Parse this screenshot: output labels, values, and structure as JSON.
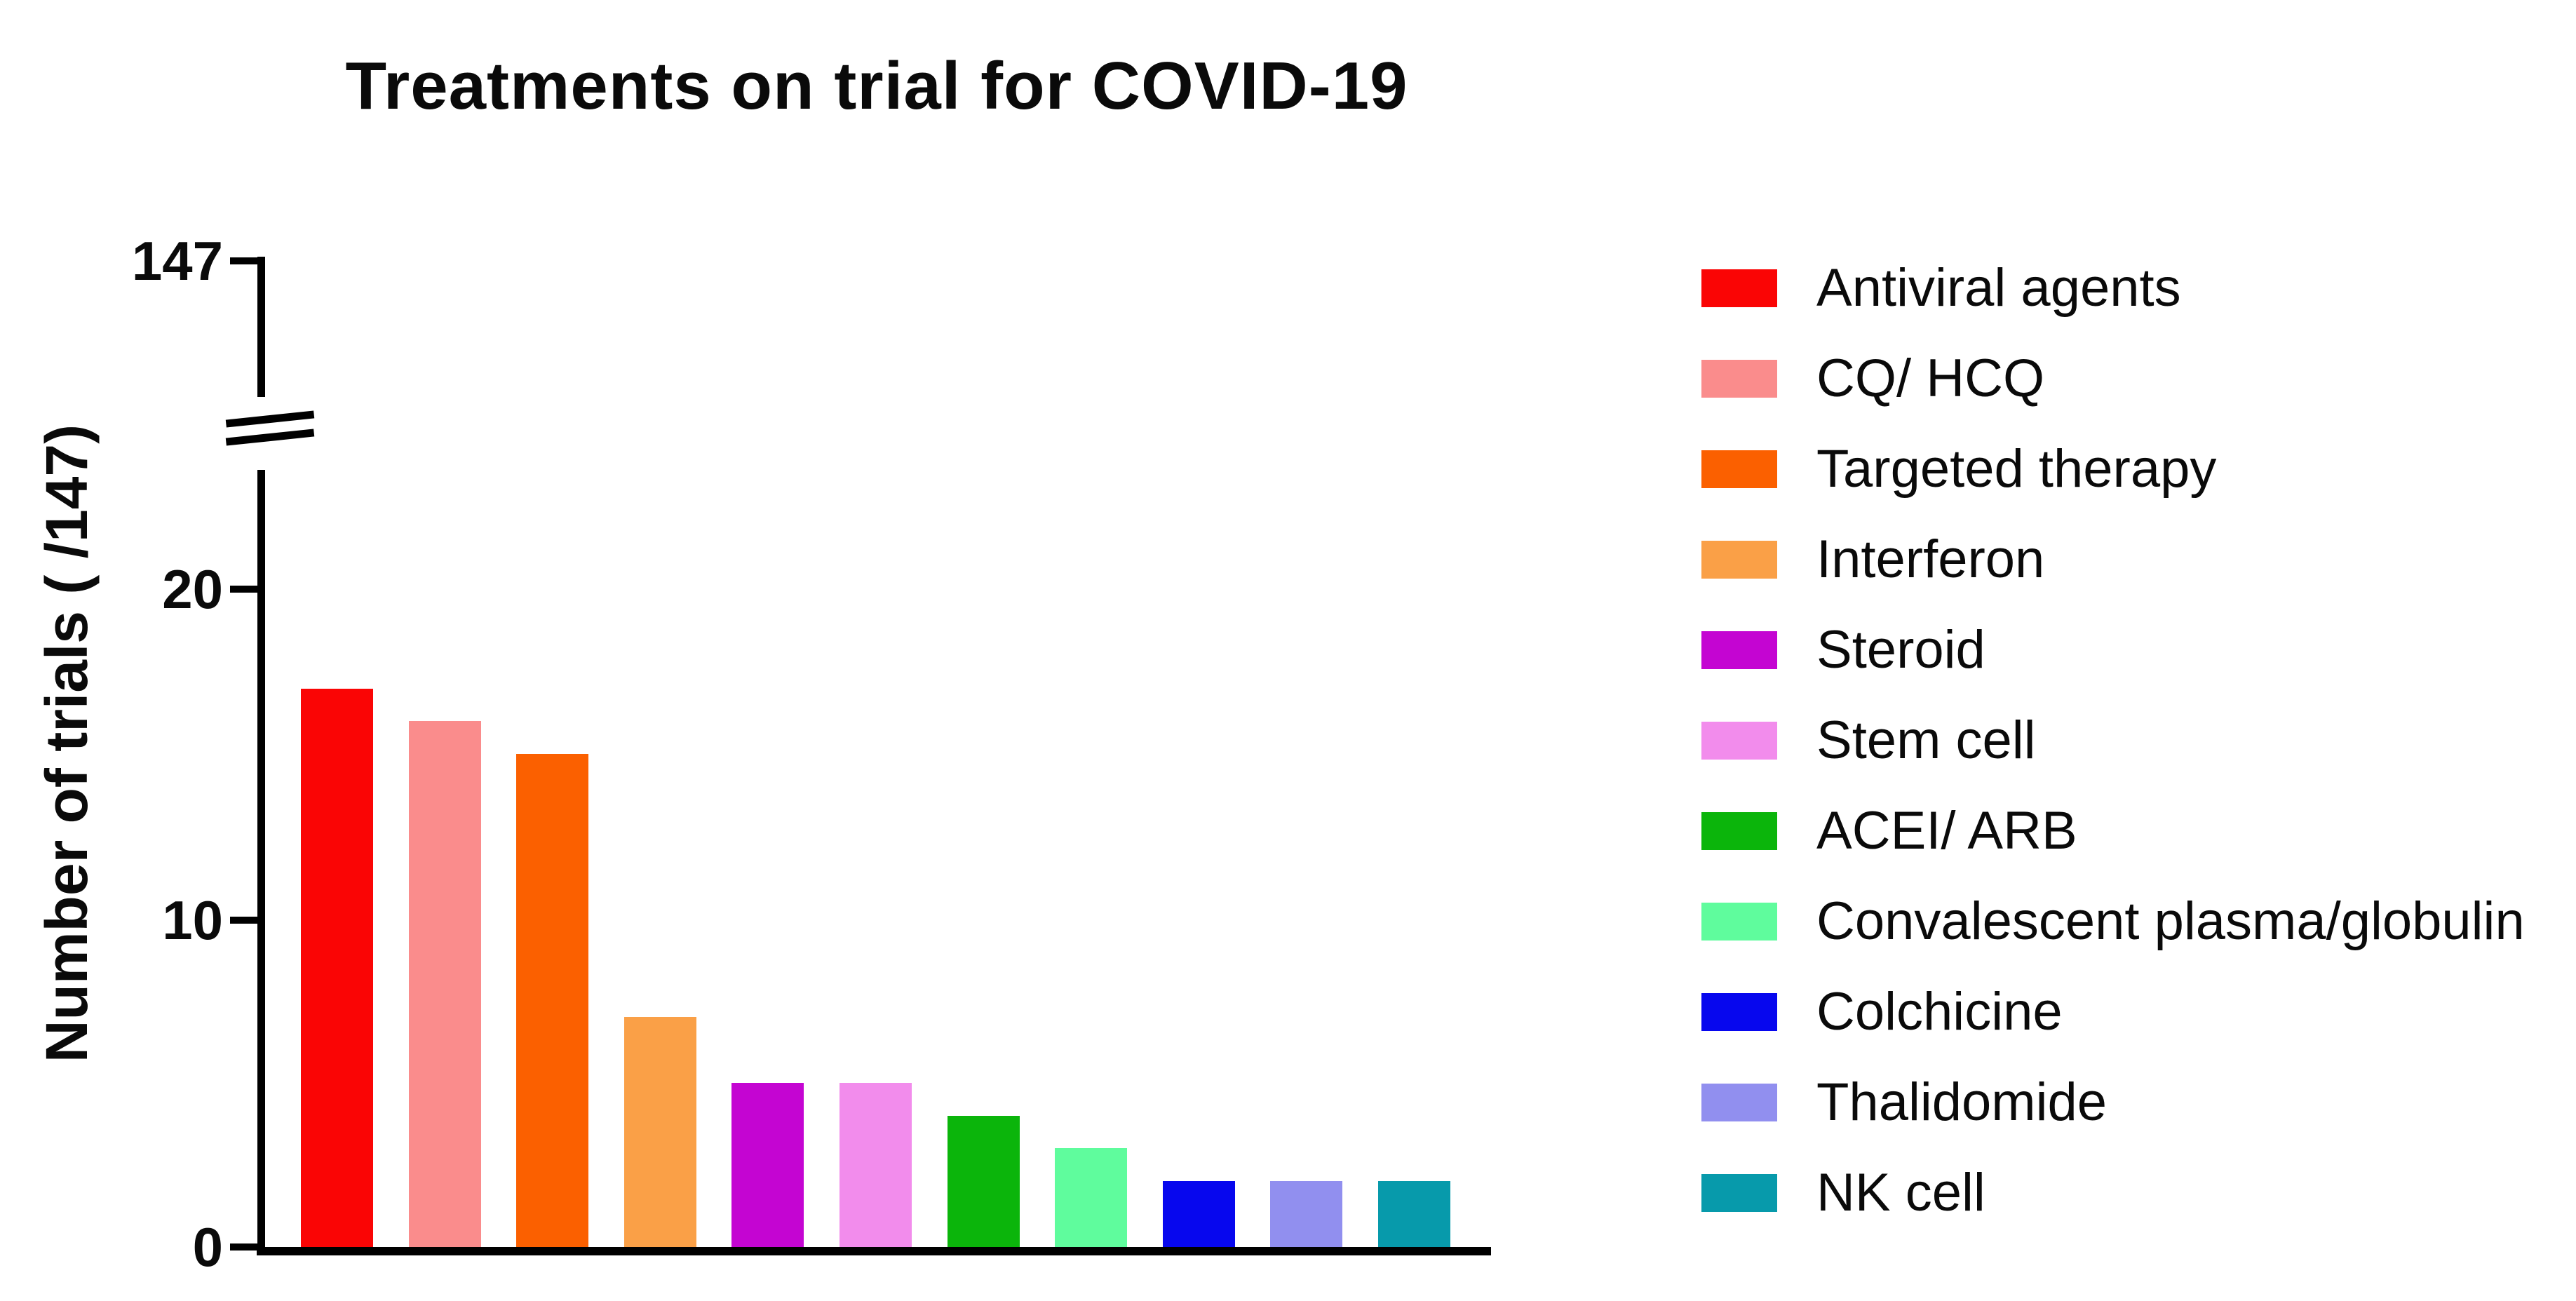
{
  "chart_data": {
    "type": "bar",
    "title": "Treatments on trial for COVID-19",
    "ylabel": "Number of trials ( /147)",
    "xlabel": "",
    "grid": false,
    "legend_position": "right",
    "y_axis": {
      "break": true,
      "break_top_tick_label": "147",
      "tick_labels_bottom_to_top": [
        "0",
        "10",
        "20"
      ],
      "ylim_lower_segment": [
        0,
        23
      ],
      "ylim_upper_value": 147
    },
    "categories": [
      "Antiviral agents",
      "CQ/ HCQ",
      "Targeted therapy",
      "Interferon",
      "Steroid",
      "Stem cell",
      "ACEI/ ARB",
      "Convalescent plasma/globulin",
      "Colchicine",
      "Thalidomide",
      "NK cell"
    ],
    "values": [
      17,
      16,
      15,
      7,
      5,
      5,
      4,
      3,
      2,
      2,
      2
    ],
    "colors": [
      "#fa0505",
      "#fa8c8c",
      "#fb6000",
      "#faa047",
      "#c405d2",
      "#f28cec",
      "#0bb50b",
      "#5ffc9d",
      "#0707ee",
      "#918fef",
      "#079aab"
    ],
    "series": [
      {
        "label": "Antiviral agents",
        "value": 17,
        "color": "#fa0505"
      },
      {
        "label": "CQ/ HCQ",
        "value": 16,
        "color": "#fa8c8c"
      },
      {
        "label": "Targeted therapy",
        "value": 15,
        "color": "#fb6000"
      },
      {
        "label": "Interferon",
        "value": 7,
        "color": "#faa047"
      },
      {
        "label": "Steroid",
        "value": 5,
        "color": "#c405d2"
      },
      {
        "label": "Stem cell",
        "value": 5,
        "color": "#f28cec"
      },
      {
        "label": "ACEI/ ARB",
        "value": 4,
        "color": "#0bb50b"
      },
      {
        "label": "Convalescent plasma/globulin",
        "value": 3,
        "color": "#5ffc9d"
      },
      {
        "label": "Colchicine",
        "value": 2,
        "color": "#0707ee"
      },
      {
        "label": "Thalidomide",
        "value": 2,
        "color": "#918fef"
      },
      {
        "label": "NK cell",
        "value": 2,
        "color": "#079aab"
      }
    ],
    "axis_color": "#000000",
    "background_color": "#ffffff"
  }
}
